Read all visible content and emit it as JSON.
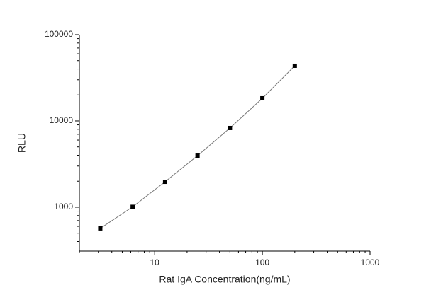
{
  "chart_data": {
    "type": "scatter",
    "x_label": "Rat IgA Concentration(ng/mL)",
    "y_label": "RLU",
    "x": [
      3.125,
      6.25,
      12.5,
      25,
      50,
      100,
      200
    ],
    "series": [
      {
        "color": "#000000",
        "values": [
          568,
          1010,
          1970,
          3960,
          8280,
          18300,
          43600
        ]
      }
    ],
    "xlim": [
      2,
      1000
    ],
    "ylim": [
      310,
      100000
    ],
    "xticks": [
      10,
      100,
      1000
    ],
    "yticks": [
      1000,
      10000,
      100000
    ],
    "xscale": "log",
    "yscale": "log",
    "grid": false,
    "fit_line": true
  }
}
